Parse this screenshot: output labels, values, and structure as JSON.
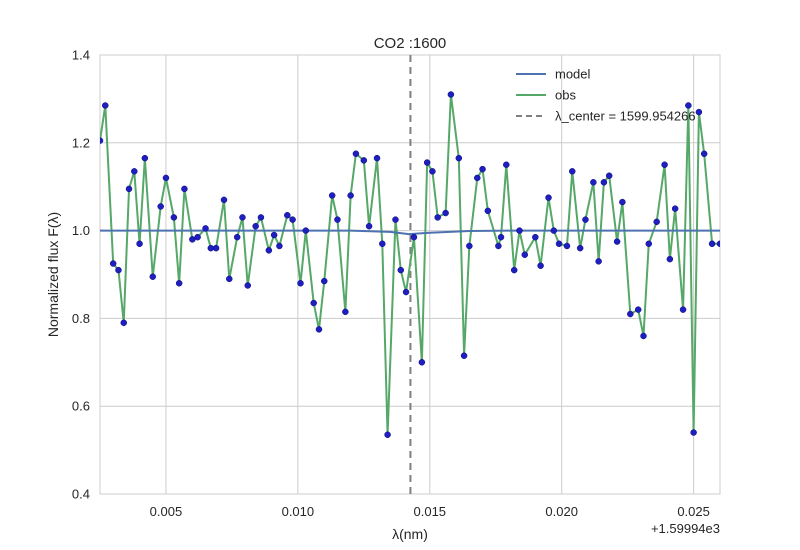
{
  "chart_data": {
    "type": "line",
    "title": "CO2 :1600",
    "xlabel": "λ(nm)",
    "ylabel": "Normalized flux F(λ)",
    "x_offset_label": "+1.59994e3",
    "xlim": [
      0.0025,
      0.026
    ],
    "ylim": [
      0.4,
      1.4
    ],
    "xticks": [
      0.005,
      0.01,
      0.015,
      0.02,
      0.025
    ],
    "xtick_labels": [
      "0.005",
      "0.010",
      "0.015",
      "0.020",
      "0.025"
    ],
    "yticks": [
      0.4,
      0.6,
      0.8,
      1.0,
      1.2,
      1.4
    ],
    "ytick_labels": [
      "0.4",
      "0.6",
      "0.8",
      "1.0",
      "1.2",
      "1.4"
    ],
    "grid": true,
    "legend_position": "top-right",
    "colors": {
      "model": "#4c72b0",
      "obs": "#55a868",
      "center": "#808080",
      "points": "#1f1fbf"
    },
    "series": [
      {
        "name": "model",
        "x": [
          0.0025,
          0.01,
          0.012,
          0.0135,
          0.0142,
          0.015,
          0.0165,
          0.018,
          0.026
        ],
        "values": [
          1.0,
          1.0,
          1.0,
          0.997,
          0.992,
          0.995,
          0.999,
          1.0,
          1.0
        ]
      },
      {
        "name": "obs",
        "x": [
          0.0025,
          0.0027,
          0.003,
          0.0032,
          0.0034,
          0.0036,
          0.0038,
          0.004,
          0.0042,
          0.0045,
          0.0048,
          0.005,
          0.0053,
          0.0055,
          0.0057,
          0.006,
          0.0062,
          0.0065,
          0.0067,
          0.0069,
          0.0072,
          0.0074,
          0.0077,
          0.0079,
          0.0081,
          0.0084,
          0.0086,
          0.0089,
          0.0091,
          0.0093,
          0.0096,
          0.0098,
          0.0101,
          0.0103,
          0.0106,
          0.0108,
          0.011,
          0.0113,
          0.0115,
          0.0118,
          0.012,
          0.0122,
          0.0125,
          0.0127,
          0.013,
          0.0132,
          0.0134,
          0.0137,
          0.0139,
          0.0141,
          0.0144,
          0.0147,
          0.0149,
          0.0151,
          0.0153,
          0.0156,
          0.0158,
          0.0161,
          0.0163,
          0.0165,
          0.0168,
          0.017,
          0.0172,
          0.0176,
          0.0177,
          0.0179,
          0.0182,
          0.0184,
          0.0186,
          0.019,
          0.0192,
          0.0195,
          0.0197,
          0.0199,
          0.0202,
          0.0204,
          0.0207,
          0.0209,
          0.0212,
          0.0214,
          0.0216,
          0.0218,
          0.0221,
          0.0223,
          0.0226,
          0.0229,
          0.0231,
          0.0233,
          0.0236,
          0.0239,
          0.0241,
          0.0243,
          0.0246,
          0.0248,
          0.025,
          0.0252,
          0.0254,
          0.0257,
          0.026
        ],
        "values": [
          1.205,
          1.285,
          0.925,
          0.91,
          0.79,
          1.095,
          1.135,
          0.97,
          1.165,
          0.895,
          1.055,
          1.12,
          1.03,
          0.88,
          1.095,
          0.98,
          0.985,
          1.005,
          0.96,
          0.96,
          1.07,
          0.89,
          0.985,
          1.03,
          0.875,
          1.01,
          1.03,
          0.955,
          0.99,
          0.965,
          1.035,
          1.025,
          0.88,
          1.0,
          0.835,
          0.775,
          0.885,
          1.08,
          1.025,
          0.815,
          1.08,
          1.175,
          1.16,
          1.01,
          1.165,
          0.97,
          0.535,
          1.025,
          0.91,
          0.86,
          0.985,
          0.7,
          1.155,
          1.135,
          1.03,
          1.04,
          1.31,
          1.165,
          0.715,
          0.965,
          1.12,
          1.14,
          1.045,
          0.965,
          0.985,
          1.15,
          0.91,
          1.0,
          0.945,
          0.985,
          0.92,
          1.075,
          1.0,
          0.97,
          0.965,
          1.135,
          0.96,
          1.025,
          1.11,
          0.93,
          1.11,
          1.125,
          0.975,
          1.065,
          0.81,
          0.82,
          0.76,
          0.97,
          1.02,
          1.15,
          0.935,
          1.05,
          0.82,
          1.285,
          0.54,
          1.27,
          1.175,
          0.97,
          0.97
        ]
      },
      {
        "name": "λ_center = 1599.954266",
        "x": [
          0.014266,
          0.014266
        ],
        "values": [
          0.4,
          1.4
        ]
      }
    ]
  }
}
